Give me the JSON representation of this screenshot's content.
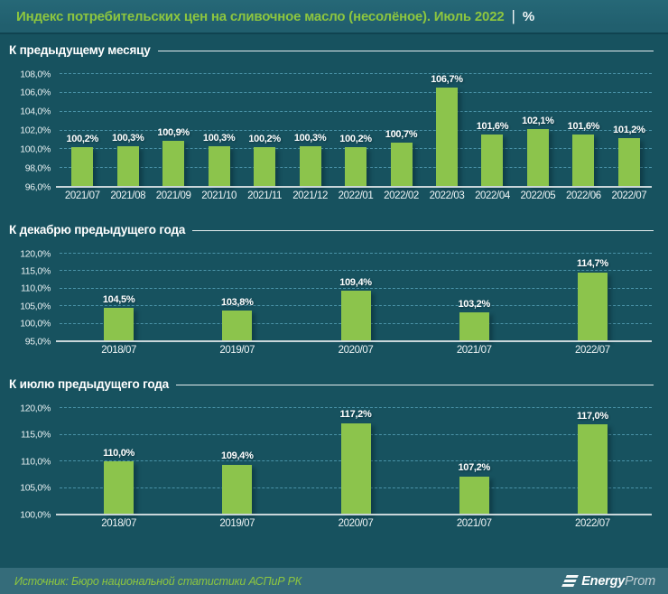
{
  "title": {
    "main": "Индекс потребительских цен на сливочное масло (несолёное). Июль 2022",
    "separator": "|",
    "unit": "%"
  },
  "chart_data": [
    {
      "type": "bar",
      "title": "К предыдущему месяцу",
      "categories": [
        "2021/07",
        "2021/08",
        "2021/09",
        "2021/10",
        "2021/11",
        "2021/12",
        "2022/01",
        "2022/02",
        "2022/03",
        "2022/04",
        "2022/05",
        "2022/06",
        "2022/07"
      ],
      "values": [
        100.2,
        100.3,
        100.9,
        100.3,
        100.2,
        100.3,
        100.2,
        100.7,
        106.7,
        101.6,
        102.1,
        101.6,
        101.2
      ],
      "value_labels": [
        "100,2%",
        "100,3%",
        "100,9%",
        "100,3%",
        "100,2%",
        "100,3%",
        "100,2%",
        "100,7%",
        "106,7%",
        "101,6%",
        "102,1%",
        "101,6%",
        "101,2%"
      ],
      "ylim": [
        96,
        108
      ],
      "ytick_labels": [
        "96,0%",
        "98,0%",
        "100,0%",
        "102,0%",
        "104,0%",
        "106,0%",
        "108,0%"
      ],
      "grid": "horizontal-dashed",
      "legend": "none",
      "unit": "%"
    },
    {
      "type": "bar",
      "title": "К декабрю предыдущего года",
      "categories": [
        "2018/07",
        "2019/07",
        "2020/07",
        "2021/07",
        "2022/07"
      ],
      "values": [
        104.5,
        103.8,
        109.4,
        103.2,
        114.7
      ],
      "value_labels": [
        "104,5%",
        "103,8%",
        "109,4%",
        "103,2%",
        "114,7%"
      ],
      "ylim": [
        95,
        120
      ],
      "ytick_labels": [
        "95,0%",
        "100,0%",
        "105,0%",
        "110,0%",
        "115,0%",
        "120,0%"
      ],
      "grid": "horizontal-dashed",
      "legend": "none",
      "unit": "%"
    },
    {
      "type": "bar",
      "title": "К июлю предыдущего года",
      "categories": [
        "2018/07",
        "2019/07",
        "2020/07",
        "2021/07",
        "2022/07"
      ],
      "values": [
        110.0,
        109.4,
        117.2,
        107.2,
        117.0
      ],
      "value_labels": [
        "110,0%",
        "109,4%",
        "117,2%",
        "107,2%",
        "117,0%"
      ],
      "ylim": [
        100,
        120
      ],
      "ytick_labels": [
        "100,0%",
        "105,0%",
        "110,0%",
        "115,0%",
        "120,0%"
      ],
      "grid": "horizontal-dashed",
      "legend": "none",
      "unit": "%"
    }
  ],
  "footer": {
    "source": "Источник: Бюро национальной статистики АСПиР РК",
    "logo": {
      "icon": "energyprom-logo-icon",
      "text_bold": "Energy",
      "text_light": "Prom"
    }
  },
  "colors": {
    "background": "#17525f",
    "title_bar": "#226070",
    "footer_bar": "#356c7a",
    "accent_green": "#8dc63f",
    "bar_fill": "#8cc44c",
    "gridline": "#4a93a8",
    "axis_line": "#c9d6da",
    "text_primary": "#ffffff"
  }
}
